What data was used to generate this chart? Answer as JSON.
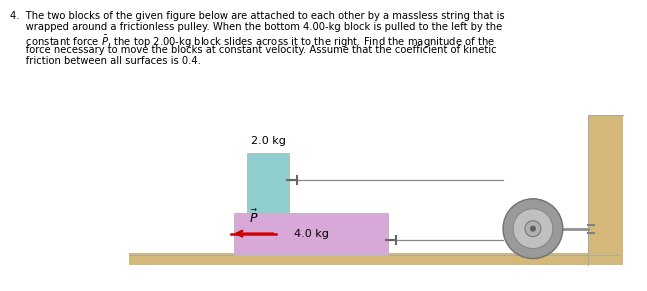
{
  "background_color": "#ffffff",
  "floor_color": "#d4b87a",
  "wall_color": "#d4b87a",
  "block_top_color": "#90cece",
  "block_bottom_color": "#d8a8d8",
  "pulley_outer_color": "#9a9a9a",
  "pulley_inner_color": "#c0c0c0",
  "pulley_hub_color": "#b0b0b0",
  "arrow_color": "#cc0000",
  "string_color": "#888888",
  "axle_color": "#909090",
  "label_2kg": "2.0 kg",
  "label_4kg": "4.0 kg",
  "label_force": "$\\vec{P}$",
  "text_lines": [
    "4.  The two blocks of the given figure below are attached to each other by a massless string that is",
    "     wrapped around a frictionless pulley. When the bottom 4.00-kg block is pulled to the left by the",
    "     constant force $\\bar{P}$, the top 2.00-kg block slides across it to the right. Find the magnitude of the",
    "     force necessary to move the blocks at constant velocity. Assume that the coefficient of kinetic",
    "     friction between all surfaces is 0.4."
  ]
}
